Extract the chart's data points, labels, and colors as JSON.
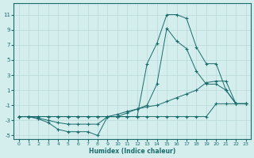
{
  "xlabel": "Humidex (Indice chaleur)",
  "bg_color": "#d4eeee",
  "grid_color": "#b8d8d8",
  "line_color": "#1a6b6b",
  "xlim": [
    -0.5,
    23.5
  ],
  "ylim": [
    -5.5,
    12.5
  ],
  "xticks": [
    0,
    1,
    2,
    3,
    4,
    5,
    6,
    7,
    8,
    9,
    10,
    11,
    12,
    13,
    14,
    15,
    16,
    17,
    18,
    19,
    20,
    21,
    22,
    23
  ],
  "yticks": [
    -5,
    -3,
    -1,
    1,
    3,
    5,
    7,
    9,
    11
  ],
  "lines": [
    {
      "x": [
        0,
        1,
        2,
        3,
        4,
        5,
        6,
        7,
        8,
        9,
        10,
        11,
        12,
        13,
        14,
        15,
        16,
        17,
        18,
        19,
        20,
        21,
        22,
        23
      ],
      "y": [
        -2.5,
        -2.5,
        -2.7,
        -3.0,
        -3.3,
        -3.5,
        -3.5,
        -3.5,
        -3.5,
        -2.5,
        -2.5,
        -2.5,
        -2.5,
        4.5,
        7.2,
        11.0,
        11.0,
        10.5,
        6.7,
        4.5,
        4.5,
        1.0,
        -0.8,
        -0.8
      ]
    },
    {
      "x": [
        0,
        1,
        2,
        3,
        4,
        5,
        6,
        7,
        8,
        9,
        10,
        11,
        12,
        13,
        14,
        15,
        16,
        17,
        18,
        19,
        20,
        21,
        22,
        23
      ],
      "y": [
        -2.5,
        -2.5,
        -2.5,
        -2.5,
        -2.5,
        -2.5,
        -2.5,
        -2.5,
        -2.5,
        -2.5,
        -2.5,
        -2.0,
        -1.5,
        -1.0,
        1.8,
        9.2,
        7.5,
        6.5,
        3.5,
        1.8,
        1.8,
        1.0,
        -0.8,
        -0.8
      ]
    },
    {
      "x": [
        0,
        1,
        2,
        3,
        4,
        5,
        6,
        7,
        8,
        9,
        10,
        11,
        12,
        13,
        14,
        15,
        16,
        17,
        18,
        19,
        20,
        21,
        22,
        23
      ],
      "y": [
        -2.5,
        -2.5,
        -2.5,
        -2.5,
        -2.5,
        -2.5,
        -2.5,
        -2.5,
        -2.5,
        -2.5,
        -2.2,
        -1.8,
        -1.5,
        -1.2,
        -1.0,
        -0.5,
        0.0,
        0.5,
        1.0,
        2.0,
        2.2,
        2.2,
        -0.8,
        -0.8
      ]
    },
    {
      "x": [
        0,
        1,
        2,
        3,
        4,
        5,
        6,
        7,
        8,
        9,
        10,
        11,
        12,
        13,
        14,
        15,
        16,
        17,
        18,
        19,
        20,
        21,
        22,
        23
      ],
      "y": [
        -2.5,
        -2.5,
        -2.8,
        -3.3,
        -4.2,
        -4.5,
        -4.5,
        -4.5,
        -5.0,
        -2.5,
        -2.5,
        -2.5,
        -2.5,
        -2.5,
        -2.5,
        -2.5,
        -2.5,
        -2.5,
        -2.5,
        -2.5,
        -0.8,
        -0.8,
        -0.8,
        -0.8
      ]
    }
  ]
}
